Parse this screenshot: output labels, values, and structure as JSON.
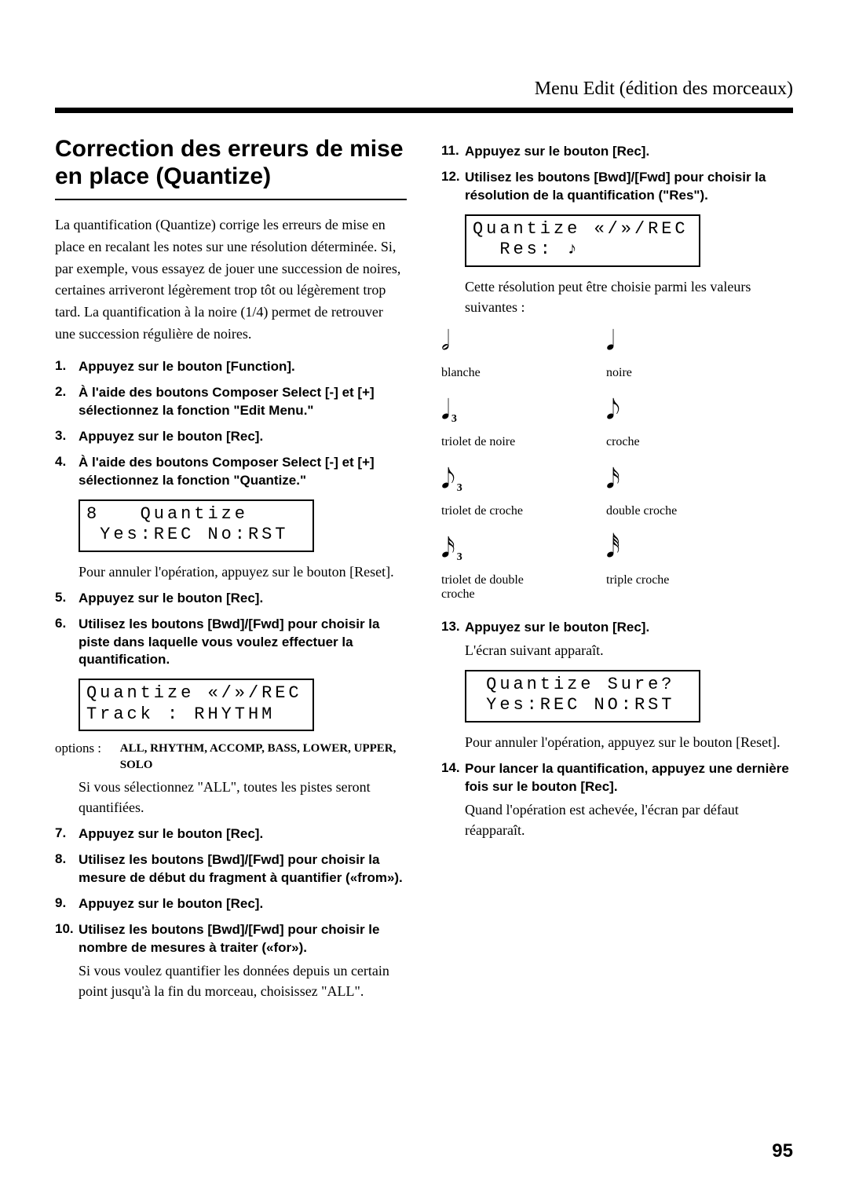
{
  "runhead": "Menu Edit (édition des morceaux)",
  "section_title": "Correction des erreurs de mise en place (Quantize)",
  "intro": "La quantification (Quantize) corrige les erreurs de mise en place en recalant les notes sur une résolution déterminée. Si, par exemple, vous essayez de jouer une succession de noires, certaines arriveront légèrement trop tôt ou légèrement trop tard. La quantification à la noire (1/4) permet de retrouver une succession régulière de noires.",
  "steps_left": [
    {
      "head": "Appuyez sur le bouton [Function]."
    },
    {
      "head": "À l'aide des boutons Composer Select [-] et [+] sélectionnez la fonction \"Edit Menu.\""
    },
    {
      "head": "Appuyez sur le bouton [Rec]."
    },
    {
      "head": "À l'aide des boutons Composer Select [-] et [+] sélectionnez la fonction \"Quantize.\""
    }
  ],
  "lcd1": {
    "l1": "8   Quantize",
    "l2": " Yes:REC No:RST"
  },
  "cancel_note": "Pour annuler l'opération, appuyez sur le bouton [Reset].",
  "steps_left_b": [
    {
      "head": "Appuyez sur le bouton [Rec]."
    },
    {
      "head": "Utilisez les boutons [Bwd]/[Fwd] pour choisir la piste dans laquelle vous voulez effectuer la quantification."
    }
  ],
  "lcd2": {
    "l1": "Quantize «/»/REC",
    "l2": "Track : RHYTHM"
  },
  "options_label": "options :",
  "options_values": "ALL, RHYTHM, ACCOMP, BASS, LOWER, UPPER, SOLO",
  "all_note": "Si vous sélectionnez \"ALL\", toutes les pistes seront quantifiées.",
  "steps_left_c": [
    {
      "head": "Appuyez sur le bouton [Rec]."
    },
    {
      "head": "Utilisez les boutons [Bwd]/[Fwd] pour choisir la mesure de début du fragment à quantifier («from»)."
    },
    {
      "head": "Appuyez sur le bouton [Rec]."
    },
    {
      "head": "Utilisez les boutons [Bwd]/[Fwd] pour choisir le nombre de mesures à traiter («for»).",
      "sub": "Si vous voulez quantifier les données depuis un certain point jusqu'à la fin du morceau, choisissez \"ALL\"."
    }
  ],
  "steps_right_a": [
    {
      "head": "Appuyez sur le bouton [Rec]."
    },
    {
      "head": "Utilisez les boutons [Bwd]/[Fwd] pour choisir la résolution de la quantification (\"Res\")."
    }
  ],
  "lcd3": {
    "l1": "Quantize «/»/REC",
    "l2": "  Res: ♪"
  },
  "res_note": "Cette résolution peut être choisie parmi les valeurs suivantes :",
  "note_values": [
    {
      "glyph": "𝅗𝅥",
      "tri": false,
      "label": "blanche"
    },
    {
      "glyph": "𝅘𝅥",
      "tri": false,
      "label": "noire"
    },
    {
      "glyph": "𝅘𝅥",
      "tri": true,
      "label": "triolet de noire"
    },
    {
      "glyph": "𝅘𝅥𝅮",
      "tri": false,
      "label": "croche"
    },
    {
      "glyph": "𝅘𝅥𝅮",
      "tri": true,
      "label": "triolet de croche"
    },
    {
      "glyph": "𝅘𝅥𝅯",
      "tri": false,
      "label": "double croche"
    },
    {
      "glyph": "𝅘𝅥𝅯",
      "tri": true,
      "label": "triolet de double croche"
    },
    {
      "glyph": "𝅘𝅥𝅰",
      "tri": false,
      "label": "triple croche"
    }
  ],
  "steps_right_b": [
    {
      "head": "Appuyez sur le bouton [Rec].",
      "sub": "L'écran suivant apparaît."
    }
  ],
  "lcd4": {
    "l1": " Quantize Sure?",
    "l2": " Yes:REC NO:RST"
  },
  "cancel_note2": "Pour annuler l'opération, appuyez sur le bouton [Reset].",
  "steps_right_c": [
    {
      "head": "Pour lancer la quantification, appuyez une dernière fois sur le bouton [Rec].",
      "sub": "Quand l'opération est achevée, l'écran par défaut réapparaît."
    }
  ],
  "page_number": "95"
}
